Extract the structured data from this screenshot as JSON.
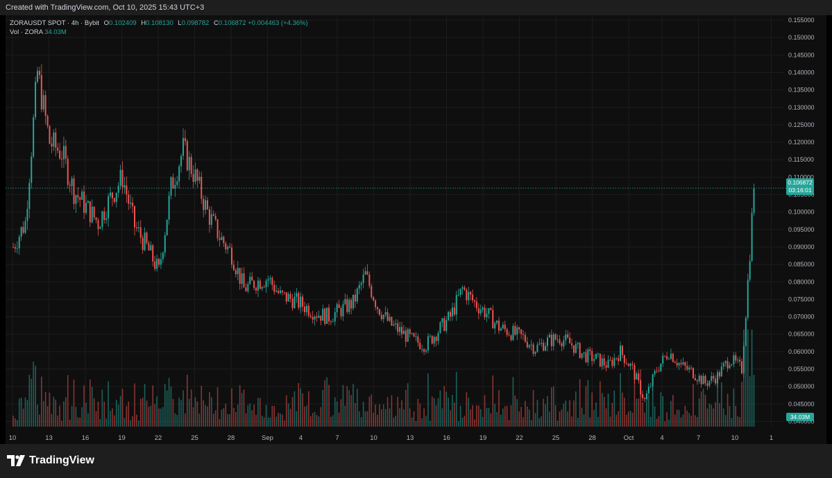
{
  "header": {
    "created_text": "Created with TradingView.com, Oct 10, 2025 15:43 UTC+3"
  },
  "legend": {
    "symbol_line": "ZORAUSDT SPOT · 4h · Bybit",
    "o_label": "O",
    "o_value": "0.102409",
    "h_label": "H",
    "h_value": "0.108130",
    "l_label": "L",
    "l_value": "0.098782",
    "c_label": "C",
    "c_value": "0.106872",
    "change": "+0.004463 (+4.36%)",
    "vol_label": "Vol · ZORA",
    "vol_value": "34.03M"
  },
  "price_tag": {
    "price": "0.106872",
    "countdown": "03:16:01"
  },
  "volume_tag": "34.03M",
  "footer": {
    "brand": "TradingView"
  },
  "colors": {
    "up": "#26a69a",
    "down": "#ef5350",
    "background": "#0f0f0f",
    "grid": "#1c1c1c"
  },
  "chart_data": {
    "type": "candlestick",
    "title": "",
    "interval": "4h",
    "y_ticks": [
      "0.155000",
      "0.150000",
      "0.145000",
      "0.140000",
      "0.135000",
      "0.130000",
      "0.125000",
      "0.120000",
      "0.115000",
      "0.110000",
      "0.105000",
      "0.100000",
      "0.095000",
      "0.090000",
      "0.085000",
      "0.080000",
      "0.075000",
      "0.070000",
      "0.065000",
      "0.060000",
      "0.055000",
      "0.050000",
      "0.045000",
      "0.040000"
    ],
    "ylim": [
      0.0385,
      0.156
    ],
    "x_ticks": [
      "10",
      "13",
      "16",
      "19",
      "22",
      "25",
      "28",
      "Sep",
      "4",
      "7",
      "10",
      "13",
      "16",
      "19",
      "22",
      "25",
      "28",
      "Oct",
      "4",
      "7",
      "10",
      "1"
    ],
    "last_price": 0.106872,
    "series": [
      {
        "name": "ZORAUSDT",
        "close_path": [
          {
            "date": "2025-08-10",
            "close": 0.09
          },
          {
            "date": "2025-08-11",
            "close": 0.097
          },
          {
            "date": "2025-08-12",
            "close": 0.14
          },
          {
            "date": "2025-08-13",
            "close": 0.12
          },
          {
            "date": "2025-08-14",
            "close": 0.117
          },
          {
            "date": "2025-08-15",
            "close": 0.106
          },
          {
            "date": "2025-08-17",
            "close": 0.097
          },
          {
            "date": "2025-08-18",
            "close": 0.104
          },
          {
            "date": "2025-08-19",
            "close": 0.11
          },
          {
            "date": "2025-08-20",
            "close": 0.096
          },
          {
            "date": "2025-08-21",
            "close": 0.09
          },
          {
            "date": "2025-08-22",
            "close": 0.083
          },
          {
            "date": "2025-08-23",
            "close": 0.107
          },
          {
            "date": "2025-08-24",
            "close": 0.118
          },
          {
            "date": "2025-08-25",
            "close": 0.11
          },
          {
            "date": "2025-08-26",
            "close": 0.1
          },
          {
            "date": "2025-08-27",
            "close": 0.093
          },
          {
            "date": "2025-08-28",
            "close": 0.088
          },
          {
            "date": "2025-08-29",
            "close": 0.078
          },
          {
            "date": "2025-08-30",
            "close": 0.08
          },
          {
            "date": "2025-08-31",
            "close": 0.081
          },
          {
            "date": "2025-09-01",
            "close": 0.076
          },
          {
            "date": "2025-09-02",
            "close": 0.075
          },
          {
            "date": "2025-09-04",
            "close": 0.071
          },
          {
            "date": "2025-09-05",
            "close": 0.07
          },
          {
            "date": "2025-09-06",
            "close": 0.072
          },
          {
            "date": "2025-09-07",
            "close": 0.074
          },
          {
            "date": "2025-09-08",
            "close": 0.082
          },
          {
            "date": "2025-09-09",
            "close": 0.073
          },
          {
            "date": "2025-09-10",
            "close": 0.068
          },
          {
            "date": "2025-09-12",
            "close": 0.063
          },
          {
            "date": "2025-09-13",
            "close": 0.062
          },
          {
            "date": "2025-09-14",
            "close": 0.066
          },
          {
            "date": "2025-09-15",
            "close": 0.07
          },
          {
            "date": "2025-09-16",
            "close": 0.078
          },
          {
            "date": "2025-09-17",
            "close": 0.074
          },
          {
            "date": "2025-09-18",
            "close": 0.071
          },
          {
            "date": "2025-09-19",
            "close": 0.067
          },
          {
            "date": "2025-09-21",
            "close": 0.064
          },
          {
            "date": "2025-09-22",
            "close": 0.061
          },
          {
            "date": "2025-09-23",
            "close": 0.063
          },
          {
            "date": "2025-09-24",
            "close": 0.064
          },
          {
            "date": "2025-09-25",
            "close": 0.062
          },
          {
            "date": "2025-09-26",
            "close": 0.059
          },
          {
            "date": "2025-09-27",
            "close": 0.058
          },
          {
            "date": "2025-09-28",
            "close": 0.056
          },
          {
            "date": "2025-09-29",
            "close": 0.06
          },
          {
            "date": "2025-09-30",
            "close": 0.055
          },
          {
            "date": "2025-10-01",
            "close": 0.046
          },
          {
            "date": "2025-10-02",
            "close": 0.055
          },
          {
            "date": "2025-10-03",
            "close": 0.06
          },
          {
            "date": "2025-10-04",
            "close": 0.056
          },
          {
            "date": "2025-10-05",
            "close": 0.054
          },
          {
            "date": "2025-10-06",
            "close": 0.051
          },
          {
            "date": "2025-10-07",
            "close": 0.053
          },
          {
            "date": "2025-10-08",
            "close": 0.058
          },
          {
            "date": "2025-10-09",
            "close": 0.055
          },
          {
            "date": "2025-10-09T12:00",
            "close": 0.08
          },
          {
            "date": "2025-10-10",
            "close": 0.106872
          }
        ]
      }
    ]
  }
}
